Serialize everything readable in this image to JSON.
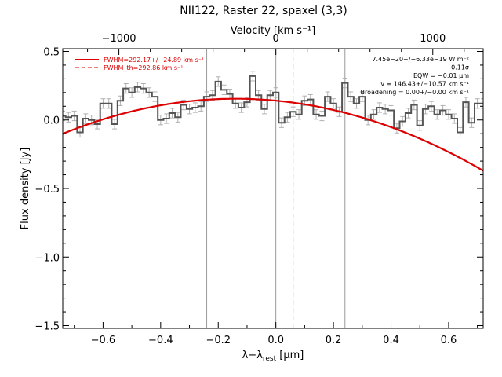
{
  "chart_data": {
    "type": "line",
    "title": "NII122, Raster 22, spaxel (3,3)",
    "xlabel": "λ−λ",
    "xlabel_sub": "rest",
    "xlabel_unit": " [μm]",
    "ylabel": "Flux density [Jy]",
    "top_axis_label": "Velocity [km s⁻¹]",
    "xlim": [
      -0.74,
      0.72
    ],
    "ylim": [
      -1.52,
      0.52
    ],
    "x_ticks": [
      -0.6,
      -0.4,
      -0.2,
      0.0,
      0.2,
      0.4,
      0.6
    ],
    "x_tick_labels": [
      "−0.6",
      "−0.4",
      "−0.2",
      "0.0",
      "0.2",
      "0.4",
      "0.6"
    ],
    "y_ticks": [
      -1.5,
      -1.0,
      -0.5,
      0.0,
      0.5
    ],
    "y_tick_labels": [
      "−1.5",
      "−1.0",
      "−0.5",
      "0.0",
      "0.5"
    ],
    "top_ticks_x": [
      -0.545,
      0.0,
      0.545
    ],
    "top_tick_labels": [
      "−1000",
      "0",
      "1000"
    ],
    "vlines_solid": [
      -0.24,
      0.0,
      0.24
    ],
    "vline_dashed": 0.06,
    "spectrum": {
      "x": [
        -0.74,
        -0.72,
        -0.7,
        -0.68,
        -0.66,
        -0.64,
        -0.62,
        -0.6,
        -0.58,
        -0.56,
        -0.54,
        -0.52,
        -0.5,
        -0.48,
        -0.46,
        -0.44,
        -0.42,
        -0.4,
        -0.38,
        -0.36,
        -0.34,
        -0.32,
        -0.3,
        -0.28,
        -0.26,
        -0.24,
        -0.22,
        -0.2,
        -0.18,
        -0.16,
        -0.14,
        -0.12,
        -0.1,
        -0.08,
        -0.06,
        -0.04,
        -0.02,
        0.0,
        0.02,
        0.04,
        0.06,
        0.08,
        0.1,
        0.12,
        0.14,
        0.16,
        0.18,
        0.2,
        0.22,
        0.24,
        0.26,
        0.28,
        0.3,
        0.32,
        0.34,
        0.36,
        0.38,
        0.4,
        0.42,
        0.44,
        0.46,
        0.48,
        0.5,
        0.52,
        0.54,
        0.56,
        0.58,
        0.6,
        0.62,
        0.64,
        0.66,
        0.68,
        0.7,
        0.72
      ],
      "y": [
        0.03,
        0.02,
        0.03,
        -0.09,
        0.01,
        0.0,
        -0.03,
        0.12,
        0.12,
        -0.03,
        0.14,
        0.23,
        0.2,
        0.24,
        0.23,
        0.2,
        0.17,
        0.0,
        0.01,
        0.05,
        0.02,
        0.11,
        0.08,
        0.09,
        0.1,
        0.17,
        0.18,
        0.28,
        0.22,
        0.19,
        0.12,
        0.09,
        0.13,
        0.32,
        0.18,
        0.08,
        0.18,
        0.2,
        -0.02,
        0.02,
        0.06,
        0.04,
        0.14,
        0.15,
        0.04,
        0.03,
        0.17,
        0.12,
        0.06,
        0.27,
        0.17,
        0.12,
        0.17,
        0.0,
        0.04,
        0.09,
        0.08,
        0.07,
        -0.06,
        -0.01,
        0.05,
        0.11,
        -0.04,
        0.08,
        0.1,
        0.04,
        0.07,
        0.04,
        0.01,
        -0.09,
        0.13,
        -0.02,
        0.12,
        0.12
      ],
      "err": 0.035
    },
    "fit": {
      "center": -0.14,
      "amplitude": 0.155,
      "curvature": 0.71
    },
    "legend": [
      {
        "label": "FWHM=292.17+/−24.89 km s⁻¹",
        "style": "solid"
      },
      {
        "label": "FWHM_th=292.86 km s⁻¹",
        "style": "dashed"
      }
    ],
    "annotations": [
      "7.45e−20+/−6.33e−19 W m⁻²",
      "0.11σ",
      "EQW = −0.01 μm",
      "v = 146.43+/−10.57 km s⁻¹",
      "Broadening = 0.00+/−0.00 km s⁻¹"
    ],
    "colors": {
      "fit": "#dd0000",
      "spectrum": "#555555",
      "errorbar": "#b0b0b0",
      "vline": "#999999"
    }
  }
}
